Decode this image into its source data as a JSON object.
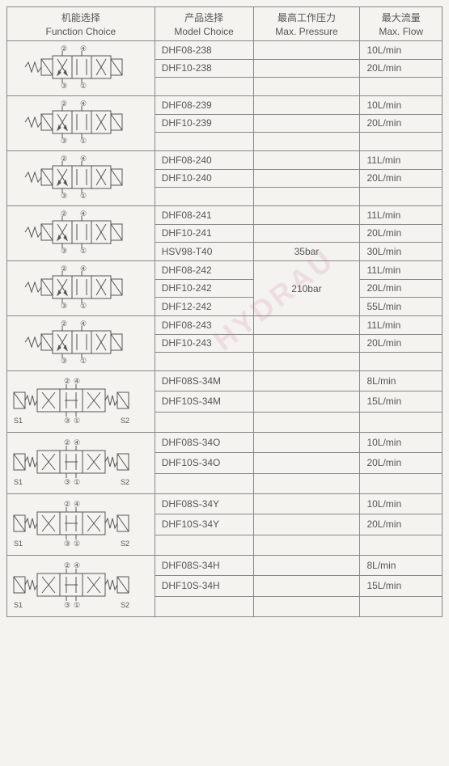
{
  "headers": {
    "func_cn": "机能选择",
    "func_en": "Function Choice",
    "model_cn": "产品选择",
    "model_en": "Model Choice",
    "press_cn": "最高工作压力",
    "press_en": "Max. Pressure",
    "flow_cn": "最大流量",
    "flow_en": "Max. Flow"
  },
  "colors": {
    "border": "#888888",
    "text": "#555555",
    "bg": "#f5f3ef",
    "watermark": "rgba(200,120,160,0.18)"
  },
  "watermark_text": "HYDRAU",
  "groups": [
    {
      "schematic": "valve-238",
      "rows": [
        {
          "model": "DHF08-238",
          "flow": "10L/min"
        },
        {
          "model": "DHF10-238",
          "flow": "20L/min"
        },
        {
          "model": "",
          "flow": ""
        }
      ]
    },
    {
      "schematic": "valve-239",
      "rows": [
        {
          "model": "DHF08-239",
          "flow": "10L/min"
        },
        {
          "model": "DHF10-239",
          "flow": "20L/min"
        },
        {
          "model": "",
          "flow": ""
        }
      ]
    },
    {
      "schematic": "valve-240",
      "rows": [
        {
          "model": "DHF08-240",
          "flow": "11L/min"
        },
        {
          "model": "DHF10-240",
          "flow": "20L/min"
        },
        {
          "model": "",
          "flow": ""
        }
      ]
    },
    {
      "schematic": "valve-241",
      "rows": [
        {
          "model": "DHF08-241",
          "flow": "11L/min"
        },
        {
          "model": "DHF10-241",
          "flow": "20L/min"
        },
        {
          "model": "HSV98-T40",
          "press": "35bar",
          "flow": "30L/min"
        }
      ]
    },
    {
      "schematic": "valve-242",
      "press_merge": "210bar",
      "rows": [
        {
          "model": "DHF08-242",
          "flow": "11L/min"
        },
        {
          "model": "DHF10-242",
          "flow": "20L/min"
        },
        {
          "model": "DHF12-242",
          "flow": "55L/min"
        }
      ]
    },
    {
      "schematic": "valve-243",
      "rows": [
        {
          "model": "DHF08-243",
          "flow": "11L/min"
        },
        {
          "model": "DHF10-243",
          "flow": "20L/min"
        },
        {
          "model": "",
          "flow": ""
        }
      ]
    },
    {
      "schematic": "valve-34M",
      "tall": true,
      "rows": [
        {
          "model": "DHF08S-34M",
          "flow": "8L/min"
        },
        {
          "model": "DHF10S-34M",
          "flow": "15L/min"
        },
        {
          "model": "",
          "flow": ""
        }
      ]
    },
    {
      "schematic": "valve-34O",
      "tall": true,
      "rows": [
        {
          "model": "DHF08S-34O",
          "flow": "10L/min"
        },
        {
          "model": "DHF10S-34O",
          "flow": "20L/min"
        },
        {
          "model": "",
          "flow": ""
        }
      ]
    },
    {
      "schematic": "valve-34Y",
      "tall": true,
      "rows": [
        {
          "model": "DHF08S-34Y",
          "flow": "10L/min"
        },
        {
          "model": "DHF10S-34Y",
          "flow": "20L/min"
        },
        {
          "model": "",
          "flow": ""
        }
      ]
    },
    {
      "schematic": "valve-34H",
      "tall": true,
      "rows": [
        {
          "model": "DHF08S-34H",
          "flow": "8L/min"
        },
        {
          "model": "DHF10S-34H",
          "flow": "15L/min"
        },
        {
          "model": "",
          "flow": ""
        }
      ]
    }
  ]
}
